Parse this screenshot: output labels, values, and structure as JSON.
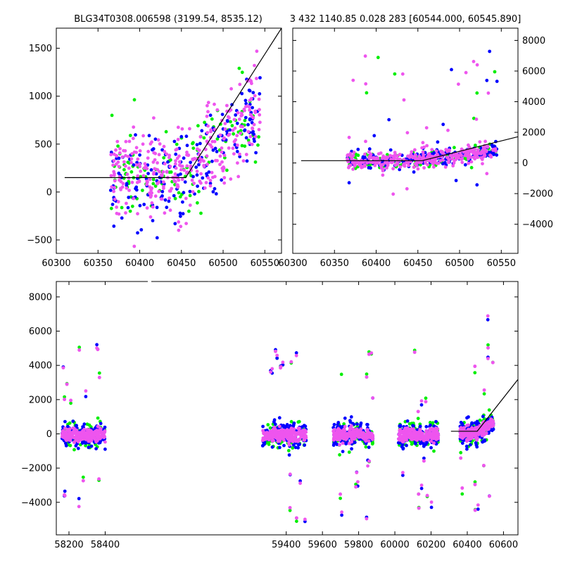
{
  "chart_data": [
    {
      "type": "scatter",
      "title": "BLG34T0308.006598 (3199.54, 8535.12)",
      "xlim": [
        60300,
        60570
      ],
      "ylim": [
        -640,
        1710
      ],
      "xticks": [
        60300,
        60350,
        60400,
        60450,
        60500,
        60550
      ],
      "yticks": [
        -500,
        0,
        500,
        1000,
        1500
      ],
      "y_axis_side": "left",
      "grid": false,
      "model_line": {
        "x": [
          60310,
          60455,
          60570
        ],
        "y": [
          150,
          150,
          1710
        ]
      },
      "series": [
        {
          "color": "#00ee00",
          "points_approx": 120
        },
        {
          "color": "#0000ff",
          "points_approx": 180
        },
        {
          "color": "#ee55ee",
          "points_approx": 330
        }
      ]
    },
    {
      "type": "scatter",
      "title": "3 432 1140.85 0.028 283 [60544.000, 60545.890]",
      "xlim": [
        60300,
        60570
      ],
      "ylim": [
        -5900,
        8800
      ],
      "xticks": [
        60300,
        60350,
        60400,
        60450,
        60500,
        60550
      ],
      "yticks": [
        -4000,
        -2000,
        0,
        2000,
        4000,
        6000,
        8000
      ],
      "y_axis_side": "right",
      "grid": false,
      "model_line": {
        "x": [
          60310,
          60455,
          60570
        ],
        "y": [
          150,
          150,
          1710
        ]
      },
      "series": [
        {
          "color": "#00ee00",
          "points_approx": 130
        },
        {
          "color": "#0000ff",
          "points_approx": 190
        },
        {
          "color": "#ee55ee",
          "points_approx": 340
        }
      ]
    },
    {
      "type": "scatter",
      "title": "",
      "xlim": [
        58130,
        60680
      ],
      "ylim": [
        -5900,
        8900
      ],
      "xticks": [
        58200,
        58400,
        59400,
        59600,
        59800,
        60000,
        60200,
        60400,
        60600
      ],
      "yticks": [
        -4000,
        -2000,
        0,
        2000,
        4000,
        6000,
        8000
      ],
      "axis_break_between": [
        58400,
        59400
      ],
      "grid": false,
      "seasons": [
        [
          58160,
          58400
        ],
        [
          59270,
          59510
        ],
        [
          59660,
          59880
        ],
        [
          60020,
          60240
        ],
        [
          60360,
          60545
        ]
      ],
      "model_line": {
        "x": [
          60310,
          60455,
          60680
        ],
        "y": [
          150,
          150,
          3180
        ]
      },
      "series": [
        {
          "color": "#00ee00",
          "points_approx": 500
        },
        {
          "color": "#0000ff",
          "points_approx": 700
        },
        {
          "color": "#ee55ee",
          "points_approx": 1800
        }
      ]
    }
  ]
}
